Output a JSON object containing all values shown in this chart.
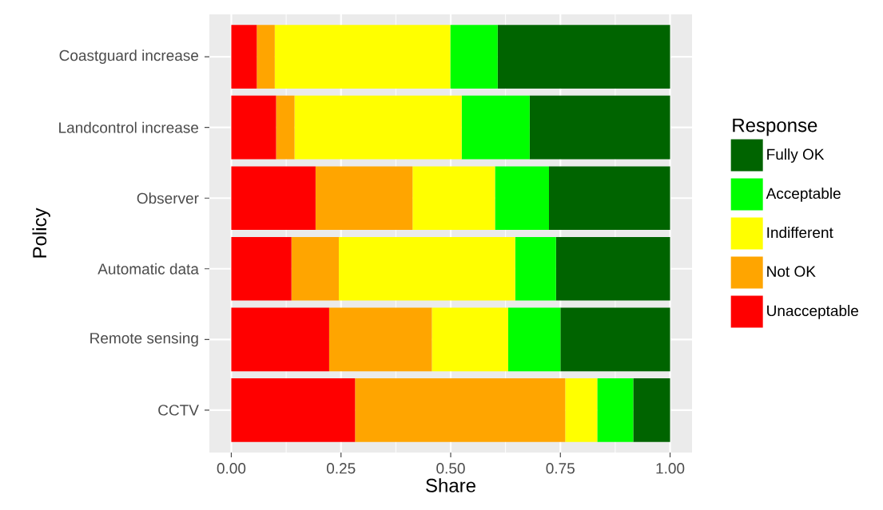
{
  "chart_data": {
    "type": "bar",
    "orientation": "horizontal",
    "stacked": true,
    "xlabel": "Share",
    "ylabel": "Policy",
    "legend_title": "Response",
    "legend": "right",
    "grid": true,
    "categories": [
      "Coastguard increase",
      "Landcontrol increase",
      "Observer",
      "Automatic data",
      "Remote sensing",
      "CCTV"
    ],
    "xlim": [
      -0.05,
      1.05
    ],
    "xticks": [
      {
        "value": 0,
        "label": "0.00"
      },
      {
        "value": 0.25,
        "label": "0.25"
      },
      {
        "value": 0.5,
        "label": "0.50"
      },
      {
        "value": 0.75,
        "label": "0.75"
      },
      {
        "value": 1,
        "label": "1.00"
      }
    ],
    "series": [
      {
        "name": "Unacceptable",
        "color": "#ff0000",
        "values": [
          0.058,
          0.102,
          0.192,
          0.137,
          0.223,
          0.282
        ]
      },
      {
        "name": "Not OK",
        "color": "#ffa500",
        "values": [
          0.041,
          0.042,
          0.221,
          0.108,
          0.234,
          0.479
        ]
      },
      {
        "name": "Indifferent",
        "color": "#ffff00",
        "values": [
          0.4,
          0.381,
          0.188,
          0.402,
          0.174,
          0.073
        ]
      },
      {
        "name": "Acceptable",
        "color": "#00ff00",
        "values": [
          0.108,
          0.155,
          0.123,
          0.093,
          0.119,
          0.082
        ]
      },
      {
        "name": "Fully OK",
        "color": "#006400",
        "values": [
          0.393,
          0.32,
          0.276,
          0.26,
          0.25,
          0.084
        ]
      }
    ]
  }
}
